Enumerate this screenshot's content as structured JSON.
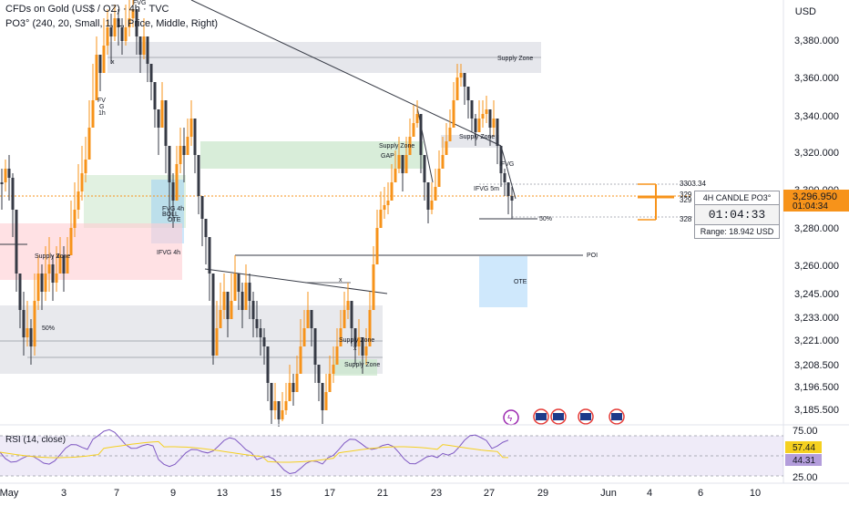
{
  "header": {
    "symbol": "CFDs on Gold (US$ / OZ) · 4h · TVC",
    "indicator": "PO3° (240, 20, Small, 1, 1, Price, Middle, Right)",
    "currency": "USD"
  },
  "timer_box": {
    "title": "4H CANDLE PO3°",
    "countdown": "01:04:33",
    "range": "Range: 18.942 USD"
  },
  "price_labels": {
    "current": "3,296.950",
    "current_time": "01:04:34",
    "level_top": "3303.34",
    "level_a": "329",
    "level_b": "329",
    "level_c": "328",
    "rsi_value": "57.44",
    "rsi_ma": "44.31"
  },
  "annotations": {
    "supply_zone": "Supply Zone",
    "fvg": "FVG",
    "fvg_1h": "FV\nG\n1h",
    "fvg_4h": "FVG 4h",
    "boll": "BOLL",
    "ote": "OTE",
    "ifvg_4h": "IFVG 4h",
    "fifty": "50%",
    "gap": "GAP",
    "ifvg": "IFVG",
    "ifvg_5m": "IFVG 5m",
    "poi": "POI",
    "x": "x",
    "rsi_title": "RSI (14, close)"
  },
  "colors": {
    "up": "#f7931a",
    "down": "#363a45",
    "accent": "#f7931a",
    "rsi_line": "#7e57c2",
    "rsi_ma": "#f5d020"
  },
  "chart_data": {
    "type": "candlestick",
    "title": "CFDs on Gold (US$ / OZ) · 4h · TVC",
    "y_ticks": [
      "3,380.000",
      "3,360.000",
      "3,340.000",
      "3,320.000",
      "3,300.000",
      "3,280.000",
      "3,260.000",
      "3,245.000",
      "3,233.000",
      "3,221.000",
      "3,208.500",
      "3,196.500",
      "3,185.500"
    ],
    "x_ticks": [
      "May",
      "3",
      "7",
      "9",
      "13",
      "15",
      "17",
      "21",
      "23",
      "27",
      "29",
      "Jun",
      "4",
      "6",
      "10"
    ],
    "ylim": [
      3175,
      3393
    ],
    "current_price": 3296.95,
    "rsi": {
      "title": "RSI (14, close)",
      "value": 57.44,
      "ma": 44.31,
      "levels": [
        25,
        75
      ]
    }
  }
}
